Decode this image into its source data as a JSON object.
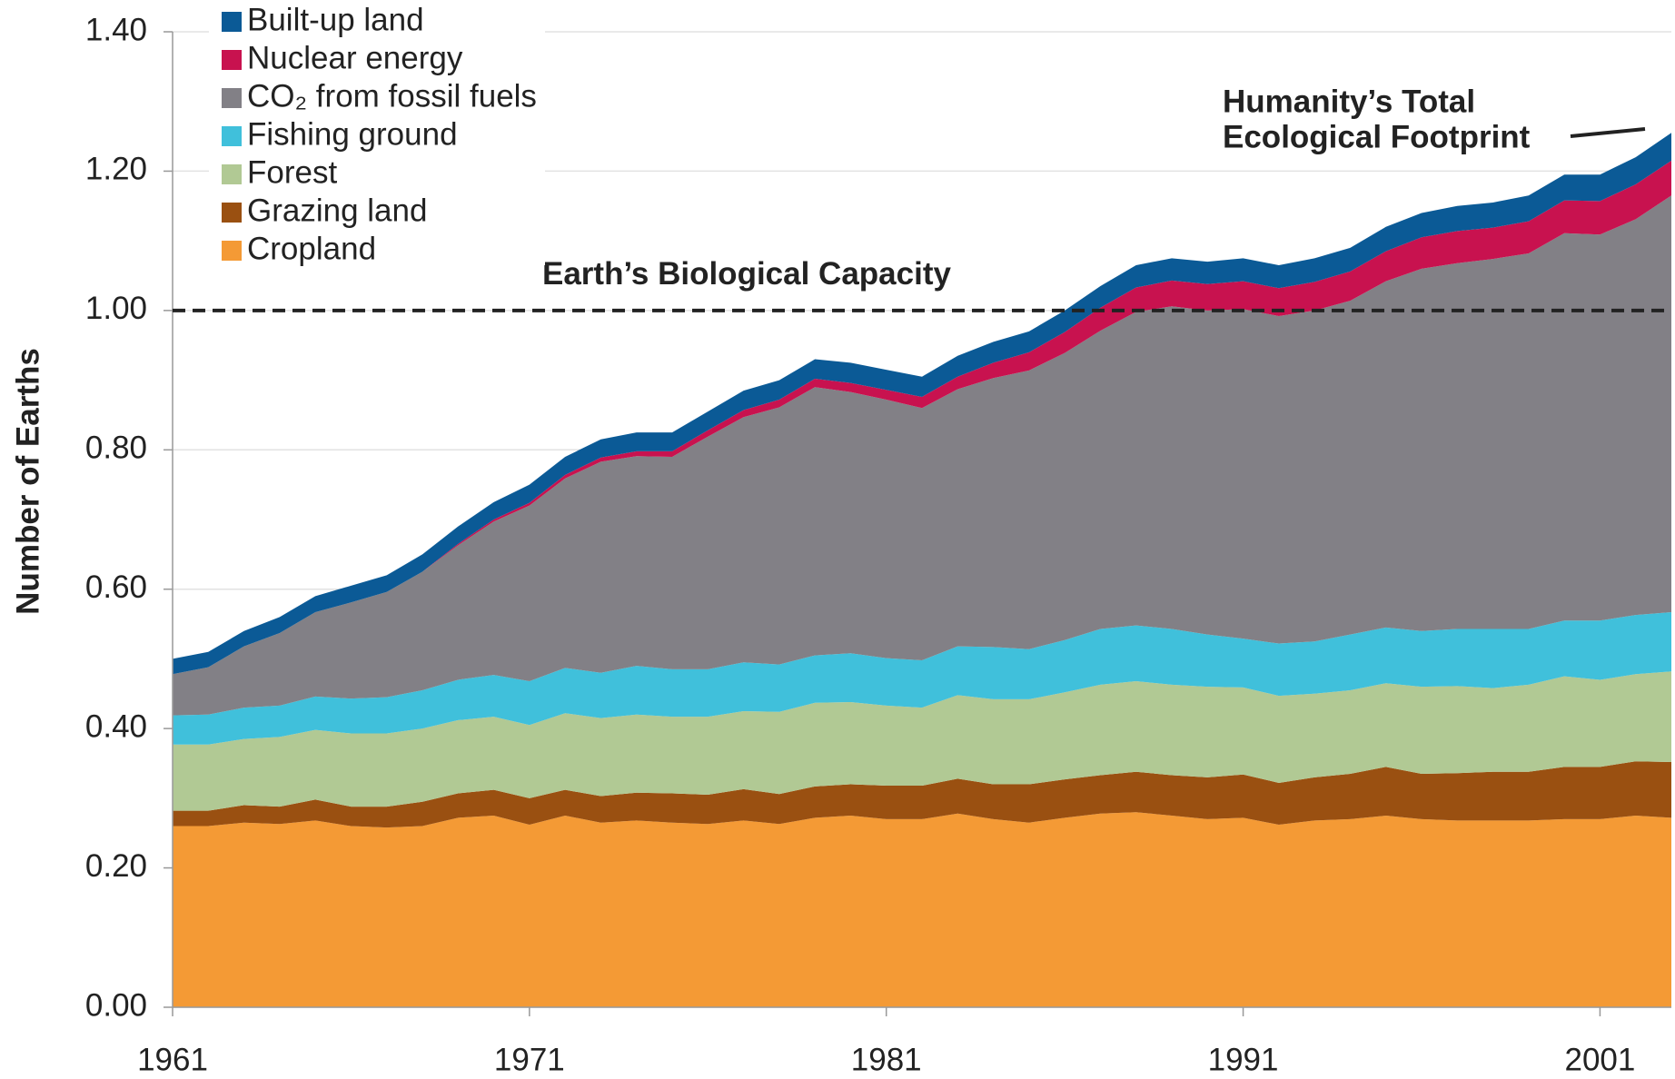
{
  "chart_data": {
    "type": "stacked_area",
    "y_label": "Number of Earths",
    "x": [
      1961,
      1962,
      1963,
      1964,
      1965,
      1966,
      1967,
      1968,
      1969,
      1970,
      1971,
      1972,
      1973,
      1974,
      1975,
      1976,
      1977,
      1978,
      1979,
      1980,
      1981,
      1982,
      1983,
      1984,
      1985,
      1986,
      1987,
      1988,
      1989,
      1990,
      1991,
      1992,
      1993,
      1994,
      1995,
      1996,
      1997,
      1998,
      1999,
      2000,
      2001,
      2002,
      2003
    ],
    "xlim": [
      1961,
      2003
    ],
    "xticks": [
      1961,
      1971,
      1981,
      1991,
      2001
    ],
    "ylim": [
      0,
      1.4
    ],
    "yticks": [
      {
        "value": 0,
        "label": "0.00"
      },
      {
        "value": 0.2,
        "label": "0.20"
      },
      {
        "value": 0.4,
        "label": "0.40"
      },
      {
        "value": 0.6,
        "label": "0.60"
      },
      {
        "value": 0.8,
        "label": "0.80"
      },
      {
        "value": 1,
        "label": "1.00"
      },
      {
        "value": 1.2,
        "label": "1.20"
      },
      {
        "value": 1.4,
        "label": "1.40"
      }
    ],
    "grid": true,
    "legend": "upper left",
    "reference_line": {
      "value": 1,
      "label": "Earth’s Biological Capacity"
    },
    "annotation": [
      "Humanity’s Total",
      "Ecological Footprint"
    ],
    "series": [
      {
        "name": "Cropland",
        "color": "#f49a35",
        "values": [
          0.26,
          0.26,
          0.265,
          0.263,
          0.268,
          0.26,
          0.258,
          0.26,
          0.272,
          0.275,
          0.262,
          0.275,
          0.265,
          0.268,
          0.265,
          0.263,
          0.268,
          0.263,
          0.272,
          0.275,
          0.27,
          0.27,
          0.278,
          0.27,
          0.265,
          0.272,
          0.278,
          0.28,
          0.275,
          0.27,
          0.272,
          0.262,
          0.268,
          0.27,
          0.275,
          0.27,
          0.268,
          0.268,
          0.268,
          0.27,
          0.27,
          0.275,
          0.272
        ]
      },
      {
        "name": "Grazing land",
        "color": "#9a5011",
        "values": [
          0.022,
          0.022,
          0.025,
          0.025,
          0.03,
          0.028,
          0.03,
          0.035,
          0.035,
          0.037,
          0.038,
          0.037,
          0.038,
          0.04,
          0.042,
          0.042,
          0.045,
          0.043,
          0.045,
          0.045,
          0.048,
          0.048,
          0.05,
          0.05,
          0.055,
          0.055,
          0.055,
          0.058,
          0.058,
          0.06,
          0.062,
          0.06,
          0.062,
          0.065,
          0.07,
          0.065,
          0.068,
          0.07,
          0.07,
          0.075,
          0.075,
          0.078,
          0.08
        ]
      },
      {
        "name": "Forest",
        "color": "#b1c994",
        "values": [
          0.095,
          0.095,
          0.095,
          0.1,
          0.1,
          0.105,
          0.105,
          0.105,
          0.105,
          0.105,
          0.105,
          0.11,
          0.112,
          0.112,
          0.11,
          0.112,
          0.112,
          0.118,
          0.12,
          0.118,
          0.115,
          0.112,
          0.12,
          0.122,
          0.122,
          0.125,
          0.13,
          0.13,
          0.13,
          0.13,
          0.125,
          0.125,
          0.12,
          0.12,
          0.12,
          0.125,
          0.125,
          0.12,
          0.125,
          0.13,
          0.125,
          0.125,
          0.13
        ]
      },
      {
        "name": "Fishing ground",
        "color": "#40c0db",
        "values": [
          0.042,
          0.043,
          0.045,
          0.045,
          0.048,
          0.05,
          0.052,
          0.055,
          0.058,
          0.06,
          0.063,
          0.065,
          0.065,
          0.07,
          0.068,
          0.068,
          0.07,
          0.068,
          0.068,
          0.07,
          0.068,
          0.068,
          0.07,
          0.075,
          0.072,
          0.075,
          0.08,
          0.08,
          0.08,
          0.075,
          0.07,
          0.075,
          0.075,
          0.08,
          0.08,
          0.08,
          0.082,
          0.085,
          0.08,
          0.08,
          0.085,
          0.085,
          0.085
        ]
      },
      {
        "name": "CO₂ from fossil fuels",
        "color": "#828086",
        "values": [
          0.059,
          0.068,
          0.088,
          0.104,
          0.121,
          0.138,
          0.151,
          0.17,
          0.193,
          0.22,
          0.252,
          0.272,
          0.303,
          0.301,
          0.305,
          0.334,
          0.352,
          0.369,
          0.385,
          0.375,
          0.371,
          0.362,
          0.369,
          0.386,
          0.4,
          0.412,
          0.428,
          0.45,
          0.463,
          0.465,
          0.473,
          0.47,
          0.475,
          0.479,
          0.497,
          0.52,
          0.525,
          0.531,
          0.539,
          0.556,
          0.554,
          0.568,
          0.598
        ]
      },
      {
        "name": "Nuclear energy",
        "color": "#c8124f",
        "values": [
          0,
          0,
          0,
          0,
          0,
          0,
          0,
          0,
          0.002,
          0.003,
          0.004,
          0.005,
          0.006,
          0.007,
          0.008,
          0.009,
          0.01,
          0.011,
          0.012,
          0.013,
          0.014,
          0.016,
          0.018,
          0.022,
          0.026,
          0.03,
          0.033,
          0.035,
          0.037,
          0.038,
          0.04,
          0.04,
          0.041,
          0.042,
          0.043,
          0.045,
          0.046,
          0.045,
          0.046,
          0.047,
          0.048,
          0.05,
          0.05
        ]
      },
      {
        "name": "Built-up land",
        "color": "#0b5a96",
        "values": [
          0.022,
          0.022,
          0.022,
          0.023,
          0.023,
          0.024,
          0.024,
          0.025,
          0.025,
          0.025,
          0.026,
          0.026,
          0.026,
          0.027,
          0.027,
          0.027,
          0.028,
          0.028,
          0.028,
          0.029,
          0.029,
          0.029,
          0.03,
          0.03,
          0.03,
          0.031,
          0.031,
          0.032,
          0.032,
          0.032,
          0.033,
          0.033,
          0.034,
          0.034,
          0.035,
          0.035,
          0.036,
          0.036,
          0.037,
          0.037,
          0.038,
          0.039,
          0.04
        ]
      }
    ]
  }
}
